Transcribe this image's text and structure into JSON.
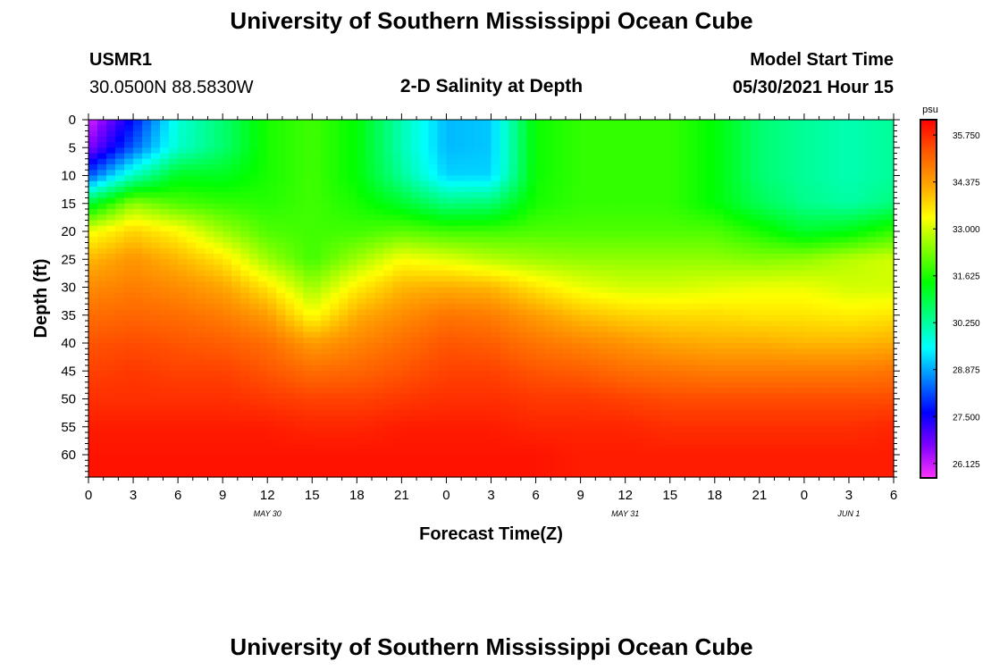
{
  "page": {
    "title_top": "University of Southern Mississippi Ocean Cube",
    "title_bottom": "University of Southern Mississippi Ocean Cube",
    "station": "USMR1",
    "coords": "30.0500N  88.5830W",
    "start_label": "Model Start Time",
    "start_value": "05/30/2021 Hour 15"
  },
  "chart_data": {
    "type": "heatmap",
    "title": "2-D Salinity at Depth",
    "xlabel": "Forecast Time(Z)",
    "ylabel": "Depth (ft)",
    "x_ticks": [
      "0",
      "3",
      "6",
      "9",
      "12",
      "15",
      "18",
      "21",
      "0",
      "3",
      "6",
      "9",
      "12",
      "15",
      "18",
      "21",
      "0",
      "3",
      "6"
    ],
    "x_hours": [
      0,
      3,
      6,
      9,
      12,
      15,
      18,
      21,
      24,
      27,
      30,
      33,
      36,
      39,
      42,
      45,
      48,
      51,
      54
    ],
    "date_labels": [
      {
        "label": "MAY 30",
        "hour": 12
      },
      {
        "label": "MAY 31",
        "hour": 36
      },
      {
        "label": "JUN 1",
        "hour": 51
      }
    ],
    "y_ticks": [
      0,
      5,
      10,
      15,
      20,
      25,
      30,
      35,
      40,
      45,
      50,
      55,
      60
    ],
    "xlim": [
      0,
      54
    ],
    "ylim": [
      0,
      64
    ],
    "colorbar": {
      "unit": "psu",
      "ticks": [
        "35.750",
        "34.375",
        "33.000",
        "31.625",
        "30.250",
        "28.875",
        "27.500",
        "26.125"
      ],
      "range": [
        25.7,
        36.2
      ],
      "colors": [
        "#ff33ff",
        "#8000ff",
        "#0000ff",
        "#0080ff",
        "#00ffff",
        "#00ff80",
        "#00ff00",
        "#80ff00",
        "#ffff00",
        "#ffa500",
        "#ff5a00",
        "#ff0000"
      ]
    },
    "salinity_grid": {
      "hours": [
        0,
        3,
        6,
        9,
        12,
        15,
        18,
        21,
        24,
        27,
        30,
        33,
        36,
        39,
        42,
        45,
        48,
        51,
        54
      ],
      "depths": [
        0,
        5,
        10,
        15,
        20,
        25,
        30,
        35,
        40,
        45,
        50,
        55,
        60,
        64
      ],
      "values": [
        [
          26.0,
          27.7,
          29.8,
          30.6,
          31.6,
          31.9,
          31.4,
          30.1,
          29.0,
          29.1,
          31.5,
          31.8,
          31.8,
          31.8,
          31.4,
          30.6,
          30.3,
          30.1,
          30.3
        ],
        [
          26.6,
          28.3,
          29.9,
          30.6,
          31.6,
          31.9,
          31.4,
          30.1,
          29.0,
          29.1,
          31.5,
          31.8,
          31.8,
          31.8,
          31.4,
          30.6,
          30.3,
          30.1,
          30.3
        ],
        [
          28.2,
          30.0,
          31.2,
          31.2,
          31.6,
          31.9,
          31.4,
          30.3,
          29.2,
          29.2,
          31.5,
          31.8,
          31.8,
          31.8,
          31.4,
          30.6,
          30.3,
          30.1,
          30.3
        ],
        [
          31.0,
          32.5,
          32.0,
          31.8,
          31.7,
          31.9,
          31.6,
          31.1,
          30.5,
          30.6,
          31.6,
          31.8,
          31.8,
          31.8,
          31.4,
          30.8,
          30.4,
          30.2,
          30.5
        ],
        [
          33.2,
          33.8,
          33.4,
          32.6,
          32.0,
          31.9,
          31.9,
          32.1,
          31.9,
          31.9,
          32.0,
          32.0,
          32.0,
          32.0,
          32.0,
          31.6,
          31.1,
          31.3,
          31.8
        ],
        [
          34.1,
          34.5,
          34.1,
          33.6,
          32.6,
          31.9,
          32.6,
          33.3,
          33.1,
          32.8,
          32.6,
          32.5,
          32.5,
          32.5,
          32.5,
          32.4,
          32.5,
          32.8,
          33.0
        ],
        [
          34.6,
          34.8,
          34.6,
          34.3,
          33.6,
          32.6,
          33.5,
          34.1,
          34.2,
          34.1,
          33.6,
          33.2,
          33.0,
          33.0,
          33.1,
          33.2,
          33.2,
          33.0,
          33.0
        ],
        [
          35.0,
          35.1,
          35.0,
          34.8,
          34.4,
          33.3,
          34.2,
          34.6,
          34.9,
          34.8,
          34.4,
          34.0,
          33.8,
          33.7,
          33.7,
          33.6,
          33.6,
          33.5,
          33.6
        ],
        [
          35.3,
          35.4,
          35.3,
          35.2,
          35.0,
          34.4,
          34.7,
          35.0,
          35.3,
          35.2,
          34.9,
          34.7,
          34.5,
          34.3,
          34.2,
          34.2,
          34.1,
          34.1,
          34.2
        ],
        [
          35.5,
          35.6,
          35.5,
          35.5,
          35.3,
          35.0,
          35.1,
          35.3,
          35.5,
          35.5,
          35.3,
          35.2,
          35.0,
          34.9,
          34.8,
          34.8,
          34.8,
          34.8,
          34.9
        ],
        [
          35.7,
          35.7,
          35.7,
          35.7,
          35.6,
          35.5,
          35.5,
          35.6,
          35.7,
          35.7,
          35.6,
          35.6,
          35.5,
          35.4,
          35.4,
          35.4,
          35.4,
          35.4,
          35.4
        ],
        [
          35.9,
          35.9,
          35.9,
          35.9,
          35.9,
          35.8,
          35.8,
          35.9,
          35.9,
          35.9,
          35.8,
          35.8,
          35.8,
          35.7,
          35.7,
          35.7,
          35.7,
          35.7,
          35.8
        ],
        [
          36.0,
          36.0,
          36.0,
          36.0,
          36.0,
          36.0,
          36.0,
          36.0,
          36.0,
          36.0,
          36.0,
          35.9,
          35.9,
          35.9,
          35.9,
          35.9,
          35.9,
          35.9,
          35.9
        ],
        [
          36.0,
          36.0,
          36.0,
          36.0,
          36.0,
          36.0,
          36.0,
          36.0,
          36.0,
          36.0,
          36.0,
          35.9,
          35.9,
          35.9,
          35.9,
          35.9,
          35.9,
          35.9,
          35.9
        ]
      ]
    }
  }
}
